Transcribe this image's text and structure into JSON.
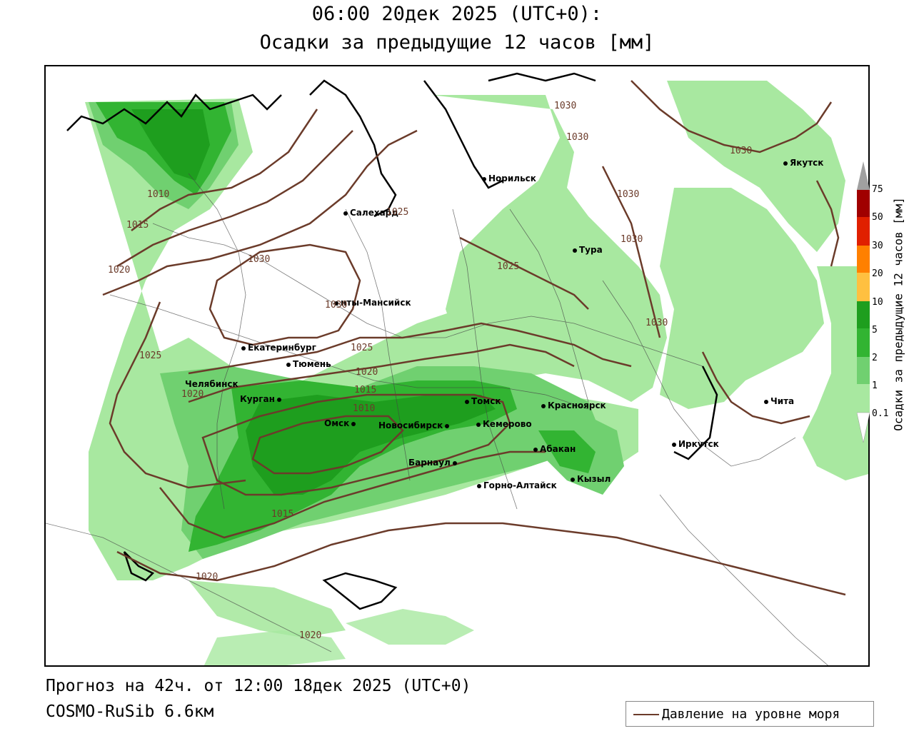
{
  "title": {
    "line1": "06:00 20дек 2025 (UTC+0):",
    "line2": "Осадки за предыдущие 12 часов [мм]"
  },
  "footer": {
    "forecast": "Прогноз на 42ч. от 12:00 18дек 2025 (UTC+0)",
    "model": "COSMO-RuSib 6.6км",
    "legend_label": "Давление на уровне моря"
  },
  "colorbar": {
    "title": "Осадки за предыдущие 12 часов [мм]",
    "ticks": [
      "75",
      "50",
      "30",
      "20",
      "10",
      "5",
      "2",
      "1",
      "0.1"
    ],
    "colors": [
      "#a0a0a0",
      "#a00000",
      "#e02000",
      "#ff8000",
      "#ffc040",
      "#1e9e1e",
      "#32b432",
      "#70d070",
      "#a8e8a0"
    ]
  },
  "cities": [
    {
      "name": "Якутск"
    },
    {
      "name": "Норильск"
    },
    {
      "name": "Салехард"
    },
    {
      "name": "Тура"
    },
    {
      "name": "нты-Мансийск"
    },
    {
      "name": "Екатеринбург"
    },
    {
      "name": "Тюмень"
    },
    {
      "name": "Челябинск"
    },
    {
      "name": "Курган"
    },
    {
      "name": "Омск"
    },
    {
      "name": "Новосибирск"
    },
    {
      "name": "Томск"
    },
    {
      "name": "Кемерово"
    },
    {
      "name": "Красноярск"
    },
    {
      "name": "Барнаул"
    },
    {
      "name": "Абакан"
    },
    {
      "name": "Горно-Алтайск"
    },
    {
      "name": "Кызыл"
    },
    {
      "name": "Иркутск"
    },
    {
      "name": "Чита"
    }
  ],
  "isobars": [
    "1030",
    "1030",
    "1030",
    "1030",
    "1030",
    "1030",
    "1030",
    "1025",
    "1025",
    "1025",
    "1020",
    "1020",
    "1015",
    "1015",
    "1015",
    "1010",
    "1010",
    "1020",
    "1020",
    "1020",
    "1025",
    "1030"
  ],
  "colors": {
    "isobar": "#6b3b2a",
    "coast": "#000000",
    "frame": "#000000"
  }
}
